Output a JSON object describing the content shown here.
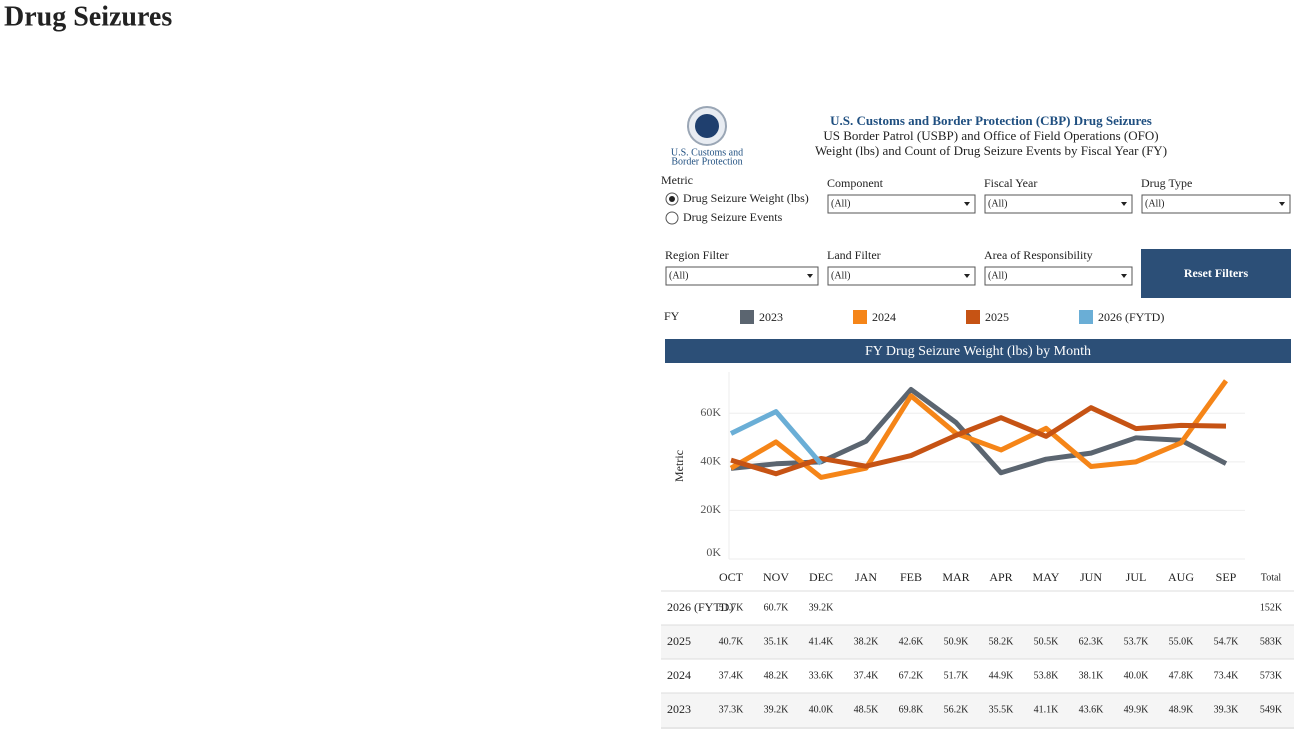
{
  "header": {
    "title": "Drug Seizures"
  },
  "logo": {
    "line1": "U.S. Customs and",
    "line2": "Border Protection"
  },
  "dashboard": {
    "title": "U.S. Customs and Border Protection (CBP) Drug Seizures",
    "subtitle1": "US Border Patrol (USBP) and Office of Field Operations (OFO)",
    "subtitle2": "Weight (lbs) and Count of Drug Seizure Events by Fiscal Year (FY)"
  },
  "filters": {
    "metric": {
      "label": "Metric",
      "options": [
        "Drug Seizure Weight (lbs)",
        "Drug Seizure Events"
      ],
      "selected": 0
    },
    "dropdowns": [
      {
        "label": "Component",
        "value": "(All)"
      },
      {
        "label": "Fiscal Year",
        "value": "(All)"
      },
      {
        "label": "Drug Type",
        "value": "(All)"
      },
      {
        "label": "Region Filter",
        "value": "(All)"
      },
      {
        "label": "Land Filter",
        "value": "(All)"
      },
      {
        "label": "Area of Responsibility",
        "value": "(All)"
      }
    ],
    "reset_button": "Reset Filters"
  },
  "legend_label": "FY",
  "chart_data": {
    "type": "line",
    "title": "FY Drug Seizure Weight (lbs) by Month",
    "y_label": "Metric",
    "categories": [
      "OCT",
      "NOV",
      "DEC",
      "JAN",
      "FEB",
      "MAR",
      "APR",
      "MAY",
      "JUN",
      "JUL",
      "AUG",
      "SEP"
    ],
    "series": [
      {
        "name": "2023",
        "color": "#5b6570",
        "values": [
          37300,
          39200,
          40000,
          48500,
          69800,
          56200,
          35500,
          41100,
          43600,
          49900,
          48900,
          39300
        ]
      },
      {
        "name": "2024",
        "color": "#f58518",
        "values": [
          37400,
          48200,
          33600,
          37400,
          67200,
          51700,
          44900,
          53800,
          38100,
          40000,
          47800,
          73400
        ]
      },
      {
        "name": "2025",
        "color": "#c65314",
        "values": [
          40700,
          35100,
          41400,
          38200,
          42600,
          50900,
          58200,
          50500,
          62300,
          53700,
          55000,
          54700
        ]
      },
      {
        "name": "2026 (FYTD)",
        "color": "#6aaed6",
        "values": [
          51700,
          60700,
          39200,
          null,
          null,
          null,
          null,
          null,
          null,
          null,
          null,
          null
        ]
      }
    ],
    "ylim": [
      0,
      77000
    ],
    "yticks": [
      {
        "value": 0,
        "label": "0K"
      },
      {
        "value": 20000,
        "label": "20K"
      },
      {
        "value": 40000,
        "label": "40K"
      },
      {
        "value": 60000,
        "label": "60K"
      }
    ],
    "grid": true
  },
  "table": {
    "total_header": "Total",
    "rows": [
      {
        "label": "2026 (FYTD)",
        "values": [
          "51.7K",
          "60.7K",
          "39.2K",
          null,
          null,
          null,
          null,
          null,
          null,
          null,
          null,
          null
        ],
        "total": "152K"
      },
      {
        "label": "2025",
        "values": [
          "40.7K",
          "35.1K",
          "41.4K",
          "38.2K",
          "42.6K",
          "50.9K",
          "58.2K",
          "50.5K",
          "62.3K",
          "53.7K",
          "55.0K",
          "54.7K"
        ],
        "total": "583K"
      },
      {
        "label": "2024",
        "values": [
          "37.4K",
          "48.2K",
          "33.6K",
          "37.4K",
          "67.2K",
          "51.7K",
          "44.9K",
          "53.8K",
          "38.1K",
          "40.0K",
          "47.8K",
          "73.4K"
        ],
        "total": "573K"
      },
      {
        "label": "2023",
        "values": [
          "37.3K",
          "39.2K",
          "40.0K",
          "48.5K",
          "69.8K",
          "56.2K",
          "35.5K",
          "41.1K",
          "43.6K",
          "49.9K",
          "48.9K",
          "39.3K"
        ],
        "total": "549K"
      }
    ]
  }
}
